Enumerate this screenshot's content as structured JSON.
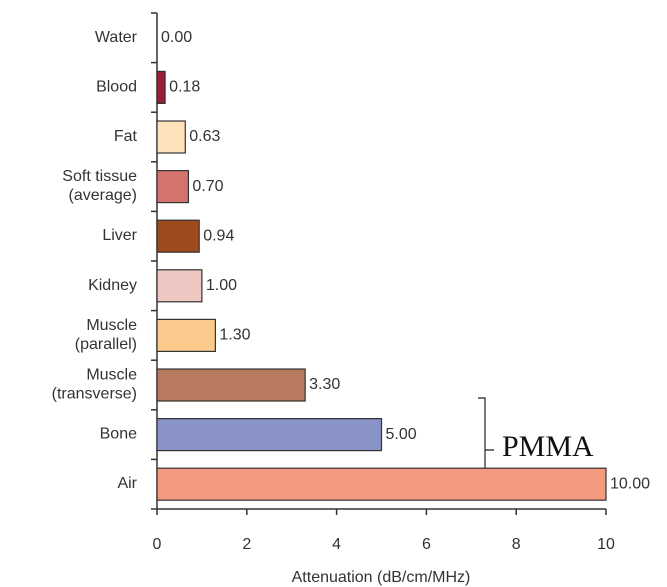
{
  "chart_data": {
    "type": "barh",
    "categories": [
      [
        "Water"
      ],
      [
        "Blood"
      ],
      [
        "Fat"
      ],
      [
        "Soft tissue",
        "(average)"
      ],
      [
        "Liver"
      ],
      [
        "Kidney"
      ],
      [
        "Muscle",
        "(parallel)"
      ],
      [
        "Muscle",
        "(transverse)"
      ],
      [
        "Bone"
      ],
      [
        "Air"
      ]
    ],
    "values": [
      0,
      0.18,
      0.63,
      0.7,
      0.94,
      1,
      1.3,
      3.3,
      5,
      10
    ],
    "value_labels": [
      "0.00",
      "0.18",
      "0.63",
      "0.70",
      "0.94",
      "1.00",
      "1.30",
      "3.30",
      "5.00",
      "10.00"
    ],
    "colors": [
      "#ffffff",
      "#9b1c35",
      "#fde2bc",
      "#d4736e",
      "#9c4a1e",
      "#eec6c2",
      "#fbcb8e",
      "#b87a5e",
      "#8a93c8",
      "#f39a80"
    ],
    "xlim": [
      0,
      10
    ],
    "xticks": [
      0,
      2,
      4,
      6,
      8,
      10
    ],
    "xlabel": "Attenuation (dB/cm/MHz)",
    "annotation": "PMMA"
  }
}
